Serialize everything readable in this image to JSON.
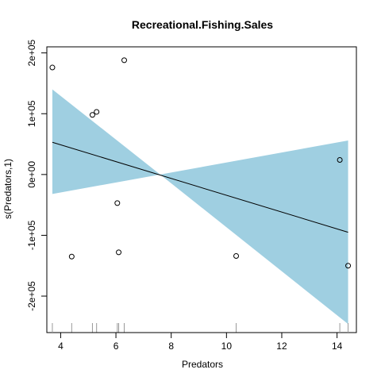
{
  "chart_data": {
    "type": "scatter",
    "title": "Recreational.Fishing.Sales",
    "xlabel": "Predators",
    "ylabel": "s(Predators,1)",
    "xlim": [
      3.5,
      14.7
    ],
    "ylim": [
      -260000,
      210000
    ],
    "x_ticks": [
      4,
      6,
      8,
      10,
      12,
      14
    ],
    "x_tick_labels": [
      "4",
      "6",
      "8",
      "10",
      "12",
      "14"
    ],
    "y_ticks": [
      -200000,
      -100000,
      0,
      100000,
      200000
    ],
    "y_tick_labels": [
      "-2e+05",
      "-1e+05",
      "0e+00",
      "1e+05",
      "2e+05"
    ],
    "fit_line": {
      "x": [
        3.7,
        14.4
      ],
      "y": [
        53000,
        -95000
      ]
    },
    "confidence_band": {
      "x": [
        3.7,
        7.6,
        14.4
      ],
      "upper": [
        140000,
        0,
        56000
      ],
      "lower": [
        -32000,
        0,
        -246000
      ],
      "color": "#9fcfe1"
    },
    "points": [
      {
        "x": 3.7,
        "y": 176000
      },
      {
        "x": 4.4,
        "y": -135000
      },
      {
        "x": 5.15,
        "y": 98000
      },
      {
        "x": 5.3,
        "y": 103000
      },
      {
        "x": 6.05,
        "y": -47000
      },
      {
        "x": 6.1,
        "y": -128000
      },
      {
        "x": 6.3,
        "y": 188000
      },
      {
        "x": 10.35,
        "y": -134000
      },
      {
        "x": 14.1,
        "y": 24000
      },
      {
        "x": 14.4,
        "y": -150000
      }
    ],
    "rug": [
      3.7,
      4.4,
      5.15,
      5.3,
      6.05,
      6.1,
      6.3,
      10.35,
      14.1,
      14.4
    ],
    "grid": false,
    "legend": "none"
  }
}
